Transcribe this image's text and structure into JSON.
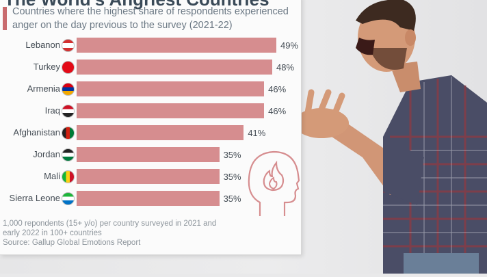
{
  "title": "The World's Angriest Countries",
  "subtitle": "Countries where the highest share of respondents experienced anger on the day previous to the survey (2021-22)",
  "note": "1,000 repondents (15+ y/o) per country surveyed in 2021 and early 2022 in 100+ countries",
  "source": "Source: Gallup Global Emotions Report",
  "colors": {
    "bar": "#d68d8f",
    "accent": "#c96b6e"
  },
  "icons": {
    "anger_head": "head-with-flame-icon"
  },
  "chart_data": {
    "type": "bar",
    "orientation": "horizontal",
    "title": "The World's Angriest Countries",
    "subtitle": "Countries where the highest share of respondents experienced anger on the day previous to the survey (2021-22)",
    "categories": [
      "Lebanon",
      "Turkey",
      "Armenia",
      "Iraq",
      "Afghanistan",
      "Jordan",
      "Mali",
      "Sierra Leone"
    ],
    "values": [
      49,
      48,
      46,
      46,
      41,
      35,
      35,
      35
    ],
    "value_labels": [
      "49%",
      "48%",
      "46%",
      "46%",
      "41%",
      "35%",
      "35%",
      "35%"
    ],
    "flags": [
      "flag-lebanon-icon",
      "flag-turkey-icon",
      "flag-armenia-icon",
      "flag-iraq-icon",
      "flag-afghanistan-icon",
      "flag-jordan-icon",
      "flag-mali-icon",
      "flag-sierra-leone-icon"
    ],
    "unit": "%",
    "grid": false,
    "legend": "none"
  }
}
